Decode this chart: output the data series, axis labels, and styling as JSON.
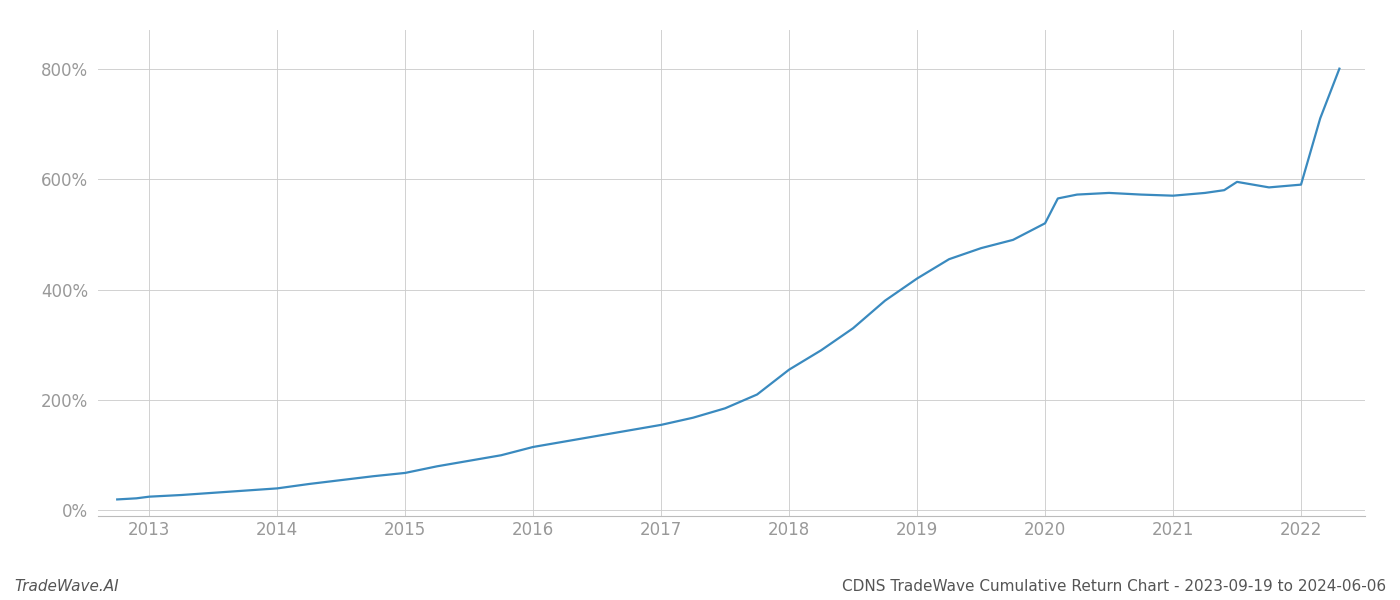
{
  "title": "CDNS TradeWave Cumulative Return Chart - 2023-09-19 to 2024-06-06",
  "watermark": "TradeWave.AI",
  "line_color": "#3a8abf",
  "background_color": "#ffffff",
  "grid_color": "#cccccc",
  "x_years": [
    2013,
    2014,
    2015,
    2016,
    2017,
    2018,
    2019,
    2020,
    2021,
    2022
  ],
  "data_x": [
    2012.75,
    2012.9,
    2013.0,
    2013.25,
    2013.5,
    2013.75,
    2014.0,
    2014.25,
    2014.5,
    2014.75,
    2015.0,
    2015.25,
    2015.5,
    2015.75,
    2016.0,
    2016.25,
    2016.5,
    2016.75,
    2017.0,
    2017.25,
    2017.5,
    2017.75,
    2018.0,
    2018.25,
    2018.5,
    2018.75,
    2019.0,
    2019.25,
    2019.5,
    2019.75,
    2020.0,
    2020.1,
    2020.25,
    2020.5,
    2020.75,
    2021.0,
    2021.25,
    2021.4,
    2021.5,
    2021.75,
    2022.0,
    2022.15,
    2022.3
  ],
  "data_y": [
    20,
    22,
    25,
    28,
    32,
    36,
    40,
    48,
    55,
    62,
    68,
    80,
    90,
    100,
    115,
    125,
    135,
    145,
    155,
    168,
    185,
    210,
    255,
    290,
    330,
    380,
    420,
    455,
    475,
    490,
    520,
    565,
    572,
    575,
    572,
    570,
    575,
    580,
    595,
    585,
    590,
    710,
    800
  ],
  "ylim": [
    -10,
    870
  ],
  "yticks": [
    0,
    200,
    400,
    600,
    800
  ],
  "xlim": [
    2012.6,
    2022.5
  ],
  "xlabel_color": "#999999",
  "ylabel_color": "#999999",
  "title_color": "#555555",
  "watermark_color": "#555555",
  "line_width": 1.6,
  "title_fontsize": 11,
  "tick_fontsize": 12,
  "watermark_fontsize": 11
}
